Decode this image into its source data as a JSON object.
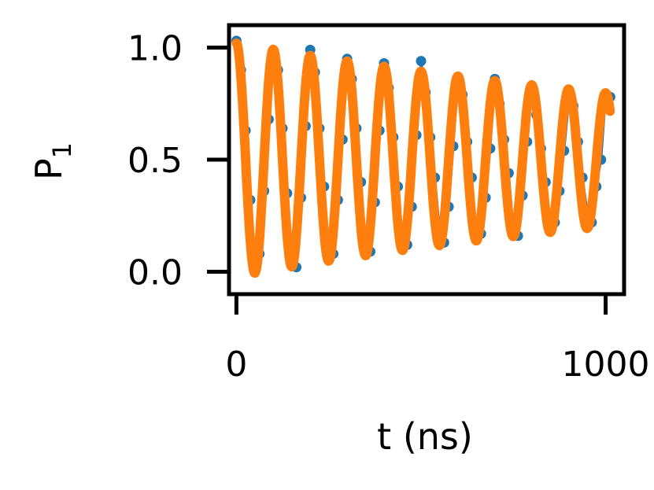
{
  "chart_data": {
    "type": "line",
    "title": "",
    "xlabel": "t (ns)",
    "ylabel": "P",
    "ylabel_subscript": "1",
    "xlim": [
      -20,
      1050
    ],
    "ylim": [
      -0.1,
      1.1
    ],
    "xticks": [
      0,
      1000
    ],
    "xtick_labels": [
      "0",
      "1000"
    ],
    "yticks": [
      0.0,
      0.5,
      1.0
    ],
    "ytick_labels": [
      "0.0",
      "0.5",
      "1.0"
    ],
    "grid": false,
    "legend": "none",
    "colors": {
      "data": "#1f77b4",
      "fit": "#ff7f0e"
    },
    "series": [
      {
        "kind": "scatter",
        "x": [
          0,
          12.5,
          25,
          37.5,
          50,
          62.5,
          75,
          87.5,
          100,
          112.5,
          125,
          137.5,
          150,
          162.5,
          175,
          187.5,
          200,
          212.5,
          225,
          237.5,
          250,
          262.5,
          275,
          287.5,
          300,
          312.5,
          325,
          337.5,
          350,
          362.5,
          375,
          387.5,
          400,
          412.5,
          425,
          437.5,
          450,
          462.5,
          475,
          487.5,
          500,
          512.5,
          525,
          537.5,
          550,
          562.5,
          575,
          587.5,
          600,
          612.5,
          625,
          637.5,
          650,
          662.5,
          675,
          687.5,
          700,
          712.5,
          725,
          737.5,
          750,
          762.5,
          775,
          787.5,
          800,
          812.5,
          825,
          837.5,
          850,
          862.5,
          875,
          887.5,
          900,
          912.5,
          925,
          937.5,
          950,
          962.5,
          975,
          987.5,
          1000,
          1012.5
        ],
        "y": [
          1.03,
          0.9,
          0.63,
          0.32,
          0.07,
          0.08,
          0.36,
          0.68,
          0.98,
          0.9,
          0.64,
          0.35,
          0.08,
          0.02,
          0.33,
          0.65,
          0.99,
          0.89,
          0.64,
          0.38,
          0.09,
          0.08,
          0.32,
          0.59,
          0.95,
          0.86,
          0.64,
          0.4,
          0.12,
          0.09,
          0.31,
          0.63,
          0.93,
          0.82,
          0.6,
          0.38,
          0.14,
          0.12,
          0.29,
          0.61,
          0.94,
          0.8,
          0.6,
          0.42,
          0.19,
          0.13,
          0.29,
          0.56,
          0.87,
          0.79,
          0.58,
          0.42,
          0.16,
          0.17,
          0.33,
          0.55,
          0.86,
          0.75,
          0.59,
          0.44,
          0.18,
          0.16,
          0.34,
          0.58,
          0.83,
          0.7,
          0.55,
          0.4,
          0.2,
          0.22,
          0.36,
          0.54,
          0.76,
          0.74,
          0.58,
          0.42,
          0.27,
          0.22,
          0.38,
          0.5,
          0.78,
          0.78
        ]
      },
      {
        "kind": "line",
        "function": "decaying-cosine",
        "amplitude": 0.52,
        "offset": 0.5,
        "period_ns": 100,
        "decay_ns": 1800,
        "x_range": [
          0,
          1012
        ]
      }
    ]
  }
}
